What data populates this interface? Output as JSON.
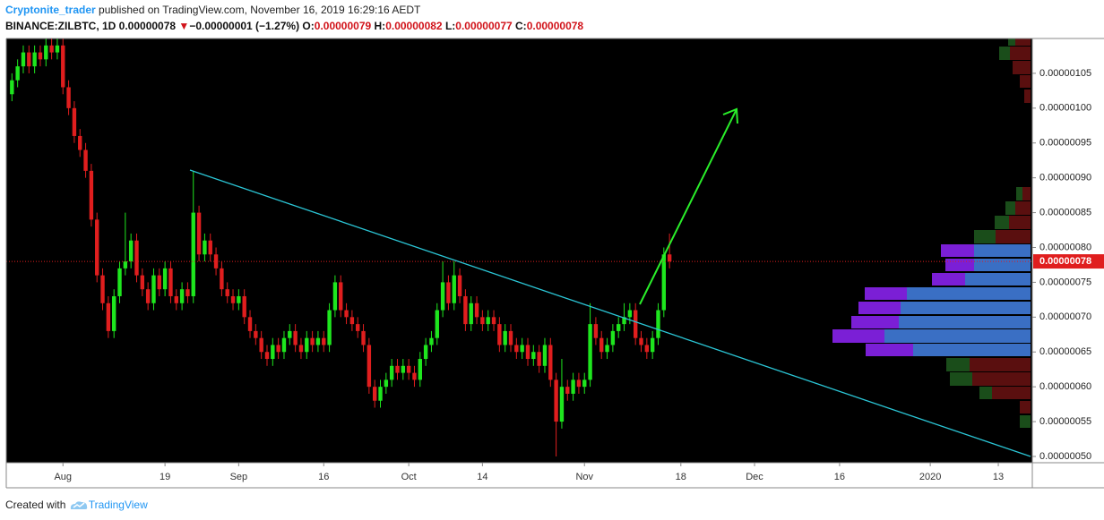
{
  "header": {
    "author": "Cryptonite_trader",
    "published": "published on TradingView.com, November 16, 2019 16:29:16 AEDT",
    "symbol": "BINANCE:ZILBTC, 1D",
    "last": "0.00000078",
    "arrow": "▼",
    "change": "−0.00000001 (−1.27%)",
    "open_label": "O:",
    "open": "0.00000079",
    "high_label": "H:",
    "high": "0.00000082",
    "low_label": "L:",
    "low": "0.00000077",
    "close_label": "C:",
    "close": "0.00000078"
  },
  "footer": {
    "created": "Created with",
    "brand": "TradingView"
  },
  "chart_data": {
    "type": "candlestick",
    "up_color": "#1ee61e",
    "down_color": "#e01e1e",
    "grid": false,
    "last_price_label": "0.00000078",
    "x": [
      "2019-07-23",
      "2019-07-24",
      "2019-07-25",
      "2019-07-26",
      "2019-07-27",
      "2019-07-28",
      "2019-07-29",
      "2019-07-30",
      "2019-07-31",
      "2019-08-01",
      "2019-08-02",
      "2019-08-03",
      "2019-08-04",
      "2019-08-05",
      "2019-08-06",
      "2019-08-07",
      "2019-08-08",
      "2019-08-09",
      "2019-08-10",
      "2019-08-11",
      "2019-08-12",
      "2019-08-13",
      "2019-08-14",
      "2019-08-15",
      "2019-08-16",
      "2019-08-17",
      "2019-08-18",
      "2019-08-19",
      "2019-08-20",
      "2019-08-21",
      "2019-08-22",
      "2019-08-23",
      "2019-08-24",
      "2019-08-25",
      "2019-08-26",
      "2019-08-27",
      "2019-08-28",
      "2019-08-29",
      "2019-08-30",
      "2019-08-31",
      "2019-09-01",
      "2019-09-02",
      "2019-09-03",
      "2019-09-04",
      "2019-09-05",
      "2019-09-06",
      "2019-09-07",
      "2019-09-08",
      "2019-09-09",
      "2019-09-10",
      "2019-09-11",
      "2019-09-12",
      "2019-09-13",
      "2019-09-14",
      "2019-09-15",
      "2019-09-16",
      "2019-09-17",
      "2019-09-18",
      "2019-09-19",
      "2019-09-20",
      "2019-09-21",
      "2019-09-22",
      "2019-09-23",
      "2019-09-24",
      "2019-09-25",
      "2019-09-26",
      "2019-09-27",
      "2019-09-28",
      "2019-09-29",
      "2019-09-30",
      "2019-10-01",
      "2019-10-02",
      "2019-10-03",
      "2019-10-04",
      "2019-10-05",
      "2019-10-06",
      "2019-10-07",
      "2019-10-08",
      "2019-10-09",
      "2019-10-10",
      "2019-10-11",
      "2019-10-12",
      "2019-10-13",
      "2019-10-14",
      "2019-10-15",
      "2019-10-16",
      "2019-10-17",
      "2019-10-18",
      "2019-10-19",
      "2019-10-20",
      "2019-10-21",
      "2019-10-22",
      "2019-10-23",
      "2019-10-24",
      "2019-10-25",
      "2019-10-26",
      "2019-10-27",
      "2019-10-28",
      "2019-10-29",
      "2019-10-30",
      "2019-10-31",
      "2019-11-01",
      "2019-11-02",
      "2019-11-03",
      "2019-11-04",
      "2019-11-05",
      "2019-11-06",
      "2019-11-07",
      "2019-11-08",
      "2019-11-09",
      "2019-11-10",
      "2019-11-11",
      "2019-11-12",
      "2019-11-13",
      "2019-11-14",
      "2019-11-15",
      "2019-11-16"
    ],
    "open": [
      1.02e-06,
      1.04e-06,
      1.06e-06,
      1.08e-06,
      1.06e-06,
      1.08e-06,
      1.07e-06,
      1.09e-06,
      1.08e-06,
      1.09e-06,
      1.03e-06,
      1e-06,
      9.6e-07,
      9.4e-07,
      9.1e-07,
      8.4e-07,
      7.6e-07,
      7.2e-07,
      6.8e-07,
      7.3e-07,
      7.7e-07,
      7.8e-07,
      8.1e-07,
      7.6e-07,
      7.4e-07,
      7.2e-07,
      7.6e-07,
      7.4e-07,
      7.7e-07,
      7.3e-07,
      7.2e-07,
      7.4e-07,
      7.3e-07,
      8.5e-07,
      7.9e-07,
      8.1e-07,
      7.9e-07,
      7.7e-07,
      7.4e-07,
      7.3e-07,
      7.2e-07,
      7.3e-07,
      7e-07,
      6.8e-07,
      6.7e-07,
      6.5e-07,
      6.4e-07,
      6.6e-07,
      6.5e-07,
      6.7e-07,
      6.8e-07,
      6.6e-07,
      6.5e-07,
      6.7e-07,
      6.6e-07,
      6.7e-07,
      6.6e-07,
      7.1e-07,
      7.5e-07,
      7.1e-07,
      7e-07,
      6.9e-07,
      6.8e-07,
      6.6e-07,
      6e-07,
      5.8e-07,
      6e-07,
      6.1e-07,
      6.3e-07,
      6.2e-07,
      6.3e-07,
      6.2e-07,
      6.1e-07,
      6.4e-07,
      6.6e-07,
      6.7e-07,
      7.1e-07,
      7.5e-07,
      7.2e-07,
      7.6e-07,
      7.3e-07,
      6.9e-07,
      7.2e-07,
      7e-07,
      6.9e-07,
      7e-07,
      6.9e-07,
      6.6e-07,
      6.8e-07,
      6.6e-07,
      6.5e-07,
      6.6e-07,
      6.4e-07,
      6.5e-07,
      6.3e-07,
      6.6e-07,
      6.1e-07,
      5.5e-07,
      6e-07,
      5.9e-07,
      6.1e-07,
      6e-07,
      6.1e-07,
      6.9e-07,
      6.7e-07,
      6.5e-07,
      6.6e-07,
      6.8e-07,
      6.9e-07,
      7e-07,
      7.1e-07,
      6.7e-07,
      6.6e-07,
      6.5e-07,
      6.7e-07,
      7.1e-07,
      7.9e-07
    ],
    "high": [
      1.05e-06,
      1.07e-06,
      1.09e-06,
      1.09e-06,
      1.09e-06,
      1.09e-06,
      1.1e-06,
      1.1e-06,
      1.1e-06,
      1.1e-06,
      1.04e-06,
      1.01e-06,
      9.7e-07,
      9.5e-07,
      9.2e-07,
      8.5e-07,
      7.7e-07,
      7.3e-07,
      7.4e-07,
      7.8e-07,
      8.5e-07,
      8.2e-07,
      8.2e-07,
      7.7e-07,
      7.5e-07,
      7.7e-07,
      7.7e-07,
      7.8e-07,
      7.8e-07,
      7.4e-07,
      7.5e-07,
      7.5e-07,
      9.1e-07,
      8.6e-07,
      8.2e-07,
      8.2e-07,
      8e-07,
      7.8e-07,
      7.5e-07,
      7.4e-07,
      7.4e-07,
      7.4e-07,
      7.1e-07,
      6.9e-07,
      6.8e-07,
      6.6e-07,
      6.7e-07,
      6.7e-07,
      6.8e-07,
      6.9e-07,
      6.9e-07,
      6.7e-07,
      6.8e-07,
      6.8e-07,
      6.8e-07,
      6.8e-07,
      7.2e-07,
      7.6e-07,
      7.6e-07,
      7.2e-07,
      7.1e-07,
      7e-07,
      6.9e-07,
      6.7e-07,
      6.1e-07,
      6.1e-07,
      6.2e-07,
      6.4e-07,
      6.4e-07,
      6.4e-07,
      6.4e-07,
      6.3e-07,
      6.5e-07,
      6.7e-07,
      6.8e-07,
      7.2e-07,
      7.8e-07,
      7.6e-07,
      7.8e-07,
      7.7e-07,
      7.4e-07,
      7.3e-07,
      7.3e-07,
      7.1e-07,
      7.1e-07,
      7.1e-07,
      7e-07,
      6.9e-07,
      6.9e-07,
      6.7e-07,
      6.7e-07,
      6.7e-07,
      6.6e-07,
      6.6e-07,
      6.7e-07,
      6.7e-07,
      6.2e-07,
      6.4e-07,
      6.1e-07,
      6.2e-07,
      6.2e-07,
      6.2e-07,
      7.2e-07,
      7e-07,
      6.8e-07,
      6.7e-07,
      6.9e-07,
      7e-07,
      7.2e-07,
      7.2e-07,
      7.2e-07,
      6.8e-07,
      6.7e-07,
      6.8e-07,
      7.2e-07,
      8e-07,
      8.2e-07
    ],
    "low": [
      1.01e-06,
      1.03e-06,
      1.05e-06,
      1.05e-06,
      1.05e-06,
      1.06e-06,
      1.06e-06,
      1.07e-06,
      1.07e-06,
      1.02e-06,
      9.9e-07,
      9.5e-07,
      9.3e-07,
      9e-07,
      8.3e-07,
      7.5e-07,
      7.1e-07,
      6.7e-07,
      6.7e-07,
      7.2e-07,
      7.6e-07,
      7.7e-07,
      7.5e-07,
      7.3e-07,
      7.1e-07,
      7.1e-07,
      7.3e-07,
      7.3e-07,
      7.2e-07,
      7.1e-07,
      7.1e-07,
      7.2e-07,
      7.2e-07,
      7.8e-07,
      7.8e-07,
      7.8e-07,
      7.6e-07,
      7.3e-07,
      7.2e-07,
      7.1e-07,
      7.1e-07,
      6.9e-07,
      6.7e-07,
      6.6e-07,
      6.4e-07,
      6.3e-07,
      6.3e-07,
      6.4e-07,
      6.4e-07,
      6.6e-07,
      6.5e-07,
      6.4e-07,
      6.4e-07,
      6.5e-07,
      6.5e-07,
      6.5e-07,
      6.5e-07,
      7e-07,
      7e-07,
      6.9e-07,
      6.8e-07,
      6.7e-07,
      6.5e-07,
      5.9e-07,
      5.7e-07,
      5.7e-07,
      5.9e-07,
      6e-07,
      6.1e-07,
      6.1e-07,
      6.1e-07,
      6e-07,
      6e-07,
      6.3e-07,
      6.5e-07,
      6.6e-07,
      7e-07,
      7.1e-07,
      7.1e-07,
      7.2e-07,
      6.8e-07,
      6.8e-07,
      6.9e-07,
      6.8e-07,
      6.8e-07,
      6.8e-07,
      6.5e-07,
      6.5e-07,
      6.5e-07,
      6.4e-07,
      6.4e-07,
      6.3e-07,
      6.3e-07,
      6.2e-07,
      6.2e-07,
      6e-07,
      5e-07,
      5.4e-07,
      5.8e-07,
      5.8e-07,
      5.9e-07,
      5.9e-07,
      6e-07,
      6.6e-07,
      6.4e-07,
      6.4e-07,
      6.5e-07,
      6.7e-07,
      6.8e-07,
      6.9e-07,
      6.6e-07,
      6.5e-07,
      6.4e-07,
      6.4e-07,
      6.6e-07,
      7e-07,
      7.7e-07
    ],
    "close": [
      1.04e-06,
      1.06e-06,
      1.08e-06,
      1.06e-06,
      1.08e-06,
      1.07e-06,
      1.09e-06,
      1.08e-06,
      1.09e-06,
      1.03e-06,
      1e-06,
      9.6e-07,
      9.4e-07,
      9.1e-07,
      8.4e-07,
      7.6e-07,
      7.2e-07,
      6.8e-07,
      7.3e-07,
      7.7e-07,
      7.8e-07,
      8.1e-07,
      7.6e-07,
      7.4e-07,
      7.2e-07,
      7.6e-07,
      7.4e-07,
      7.7e-07,
      7.3e-07,
      7.2e-07,
      7.4e-07,
      7.3e-07,
      8.5e-07,
      7.9e-07,
      8.1e-07,
      7.9e-07,
      7.7e-07,
      7.4e-07,
      7.3e-07,
      7.2e-07,
      7.3e-07,
      7e-07,
      6.8e-07,
      6.7e-07,
      6.5e-07,
      6.4e-07,
      6.6e-07,
      6.5e-07,
      6.7e-07,
      6.8e-07,
      6.6e-07,
      6.5e-07,
      6.7e-07,
      6.6e-07,
      6.7e-07,
      6.6e-07,
      7.1e-07,
      7.5e-07,
      7.1e-07,
      7e-07,
      6.9e-07,
      6.8e-07,
      6.6e-07,
      6e-07,
      5.8e-07,
      6e-07,
      6.1e-07,
      6.3e-07,
      6.2e-07,
      6.3e-07,
      6.2e-07,
      6.1e-07,
      6.4e-07,
      6.6e-07,
      6.7e-07,
      7.1e-07,
      7.5e-07,
      7.2e-07,
      7.6e-07,
      7.3e-07,
      6.9e-07,
      7.2e-07,
      7e-07,
      6.9e-07,
      7e-07,
      6.9e-07,
      6.6e-07,
      6.8e-07,
      6.6e-07,
      6.5e-07,
      6.6e-07,
      6.4e-07,
      6.5e-07,
      6.3e-07,
      6.6e-07,
      6.1e-07,
      5.5e-07,
      6e-07,
      5.9e-07,
      6.1e-07,
      6e-07,
      6.1e-07,
      6.9e-07,
      6.7e-07,
      6.5e-07,
      6.6e-07,
      6.8e-07,
      6.9e-07,
      7e-07,
      7.1e-07,
      6.7e-07,
      6.6e-07,
      6.5e-07,
      6.7e-07,
      7.1e-07,
      7.9e-07,
      7.8e-07
    ],
    "xlim": [
      "2019-07-22",
      "2020-01-19"
    ],
    "xticks": [
      {
        "value": "2019-08-01",
        "label": "Aug"
      },
      {
        "value": "2019-08-19",
        "label": "19"
      },
      {
        "value": "2019-09-01",
        "label": "Sep"
      },
      {
        "value": "2019-09-16",
        "label": "16"
      },
      {
        "value": "2019-10-01",
        "label": "Oct"
      },
      {
        "value": "2019-10-14",
        "label": "14"
      },
      {
        "value": "2019-11-01",
        "label": "Nov"
      },
      {
        "value": "2019-11-18",
        "label": "18"
      },
      {
        "value": "2019-12-01",
        "label": "Dec"
      },
      {
        "value": "2019-12-16",
        "label": "16"
      },
      {
        "value": "2020-01-01",
        "label": "2020"
      },
      {
        "value": "2020-01-13",
        "label": "13"
      }
    ],
    "ylim": [
      4.91e-07,
      1.1e-06
    ],
    "yticks": [
      {
        "value": 1.05e-06,
        "label": "0.00000105"
      },
      {
        "value": 1e-06,
        "label": "0.00000100"
      },
      {
        "value": 9.5e-07,
        "label": "0.00000095"
      },
      {
        "value": 9e-07,
        "label": "0.00000090"
      },
      {
        "value": 8.5e-07,
        "label": "0.00000085"
      },
      {
        "value": 8e-07,
        "label": "0.00000080"
      },
      {
        "value": 7.5e-07,
        "label": "0.00000075"
      },
      {
        "value": 7e-07,
        "label": "0.00000070"
      },
      {
        "value": 6.5e-07,
        "label": "0.00000065"
      },
      {
        "value": 6e-07,
        "label": "0.00000060"
      },
      {
        "value": 5.5e-07,
        "label": "0.00000055"
      },
      {
        "value": 5e-07,
        "label": "0.00000050"
      }
    ]
  }
}
